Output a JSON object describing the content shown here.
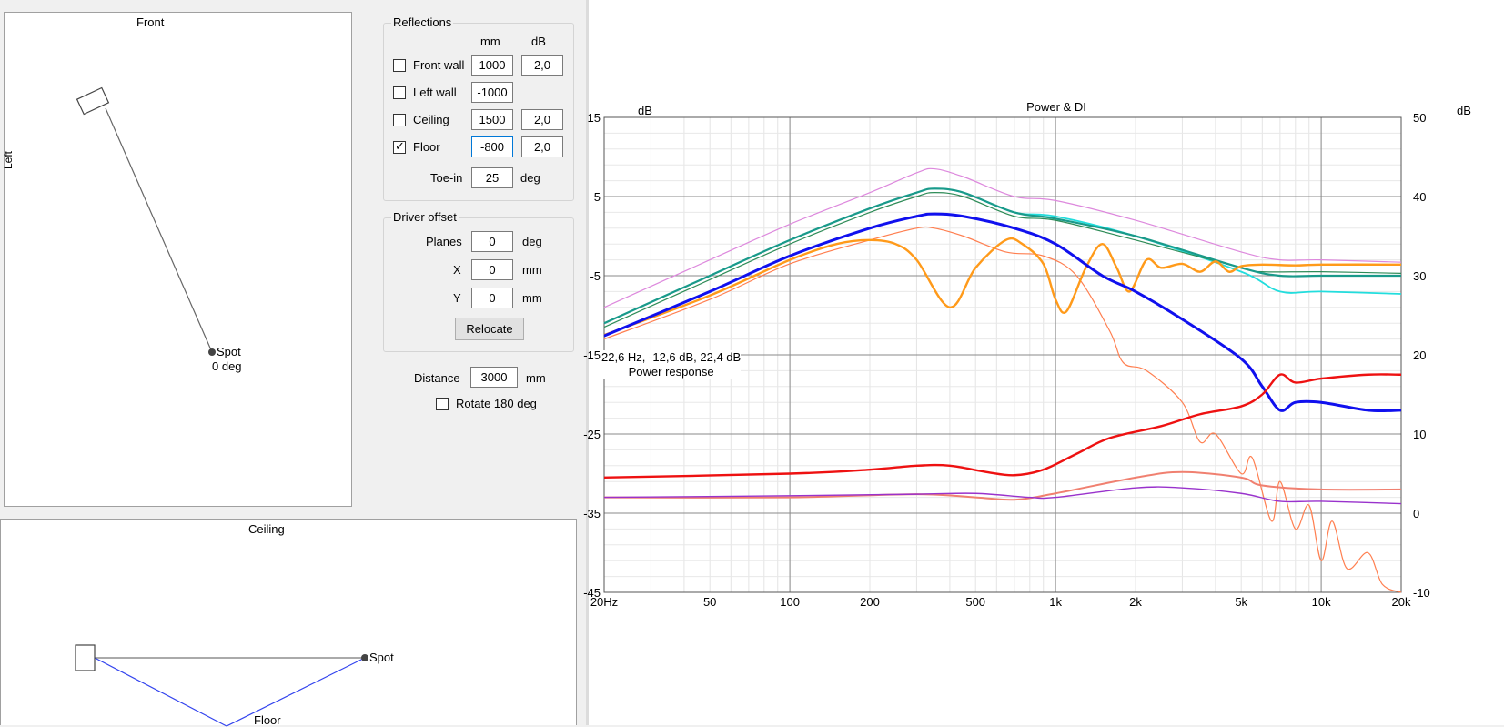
{
  "front_view": {
    "title": "Front",
    "side_label": "Left",
    "spot_label": "Spot",
    "spot_angle": "0 deg"
  },
  "ceiling_view": {
    "title": "Ceiling",
    "spot_label": "Spot",
    "floor_label": "Floor"
  },
  "reflections": {
    "title": "Reflections",
    "col_mm": "mm",
    "col_db": "dB",
    "rows": [
      {
        "label": "Front wall",
        "checked": false,
        "mm": "1000",
        "db": "2,0"
      },
      {
        "label": "Left wall",
        "checked": false,
        "mm": "-1000",
        "db": ""
      },
      {
        "label": "Ceiling",
        "checked": false,
        "mm": "1500",
        "db": "2,0"
      },
      {
        "label": "Floor",
        "checked": true,
        "mm": "-800",
        "db": "2,0"
      }
    ],
    "toe_in_label": "Toe-in",
    "toe_in_value": "25",
    "toe_in_unit": "deg"
  },
  "driver_offset": {
    "title": "Driver offset",
    "planes_label": "Planes",
    "planes_value": "0",
    "planes_unit": "deg",
    "x_label": "X",
    "x_value": "0",
    "x_unit": "mm",
    "y_label": "Y",
    "y_value": "0",
    "y_unit": "mm",
    "relocate_label": "Relocate"
  },
  "distance": {
    "label": "Distance",
    "value": "3000",
    "unit": "mm"
  },
  "rotate": {
    "label": "Rotate 180 deg",
    "checked": false
  },
  "chart_data": {
    "type": "line",
    "title": "Power & DI",
    "left_unit": "dB",
    "right_unit": "dB",
    "x_scale": "log",
    "xlim": [
      20,
      20000
    ],
    "ylim": [
      -45,
      15
    ],
    "y2lim": [
      -10,
      50
    ],
    "x_ticks": [
      {
        "v": 20,
        "label": "20Hz"
      },
      {
        "v": 50,
        "label": "50"
      },
      {
        "v": 100,
        "label": "100"
      },
      {
        "v": 200,
        "label": "200"
      },
      {
        "v": 500,
        "label": "500"
      },
      {
        "v": 1000,
        "label": "1k"
      },
      {
        "v": 2000,
        "label": "2k"
      },
      {
        "v": 5000,
        "label": "5k"
      },
      {
        "v": 10000,
        "label": "10k"
      },
      {
        "v": 20000,
        "label": "20k"
      }
    ],
    "y_ticks": [
      15,
      5,
      -5,
      -15,
      -25,
      -35,
      -45
    ],
    "y2_ticks": [
      50,
      40,
      30,
      20,
      10,
      0,
      -10
    ],
    "grid": true,
    "cursor_readout": "22,6 Hz, -12,6 dB, 22,4 dB",
    "cursor_series": "Power response",
    "series": [
      {
        "color": "#dd88dd",
        "width": 1.2,
        "points": [
          [
            20,
            -9
          ],
          [
            50,
            -3
          ],
          [
            100,
            1.5
          ],
          [
            200,
            5.5
          ],
          [
            300,
            8
          ],
          [
            350,
            8.5
          ],
          [
            450,
            7.5
          ],
          [
            700,
            5
          ],
          [
            1000,
            4.5
          ],
          [
            2000,
            2
          ],
          [
            5000,
            -2
          ],
          [
            7000,
            -3
          ],
          [
            10000,
            -3
          ],
          [
            20000,
            -3.3
          ]
        ]
      },
      {
        "color": "#22dddd",
        "width": 1.8,
        "points": [
          [
            20,
            -11
          ],
          [
            50,
            -5
          ],
          [
            100,
            -0.5
          ],
          [
            200,
            3.5
          ],
          [
            300,
            5.5
          ],
          [
            350,
            6
          ],
          [
            450,
            5.5
          ],
          [
            700,
            3
          ],
          [
            1000,
            2.5
          ],
          [
            2000,
            0
          ],
          [
            5000,
            -4.5
          ],
          [
            7000,
            -7
          ],
          [
            10000,
            -7
          ],
          [
            20000,
            -7.3
          ]
        ]
      },
      {
        "color": "#2e8b57",
        "width": 1.2,
        "points": [
          [
            20,
            -11.5
          ],
          [
            50,
            -5.5
          ],
          [
            100,
            -1
          ],
          [
            200,
            3
          ],
          [
            300,
            5
          ],
          [
            350,
            5.5
          ],
          [
            450,
            5
          ],
          [
            700,
            2.5
          ],
          [
            1000,
            2
          ],
          [
            2000,
            -0.5
          ],
          [
            5000,
            -4
          ],
          [
            6000,
            -4.5
          ],
          [
            10000,
            -4.5
          ],
          [
            20000,
            -4.7
          ]
        ]
      },
      {
        "color": "#1a9a8a",
        "width": 2.2,
        "points": [
          [
            20,
            -11
          ],
          [
            50,
            -5
          ],
          [
            100,
            -0.5
          ],
          [
            200,
            3.5
          ],
          [
            300,
            5.5
          ],
          [
            350,
            6
          ],
          [
            450,
            5.5
          ],
          [
            700,
            3
          ],
          [
            1000,
            2.2
          ],
          [
            2000,
            0
          ],
          [
            5000,
            -4
          ],
          [
            7000,
            -5
          ],
          [
            10000,
            -5
          ],
          [
            20000,
            -5
          ]
        ]
      },
      {
        "color": "#ff7f50",
        "width": 1.2,
        "points": [
          [
            20,
            -13
          ],
          [
            50,
            -8
          ],
          [
            100,
            -3.5
          ],
          [
            200,
            -0.5
          ],
          [
            300,
            1
          ],
          [
            350,
            1
          ],
          [
            450,
            0
          ],
          [
            650,
            -2
          ],
          [
            900,
            -2.5
          ],
          [
            1200,
            -5
          ],
          [
            1600,
            -12
          ],
          [
            1800,
            -16
          ],
          [
            2200,
            -17
          ],
          [
            3000,
            -21
          ],
          [
            3500,
            -26
          ],
          [
            4000,
            -25
          ],
          [
            5000,
            -30
          ],
          [
            5500,
            -28
          ],
          [
            6500,
            -36
          ],
          [
            7000,
            -31
          ],
          [
            8000,
            -37
          ],
          [
            9000,
            -34
          ],
          [
            10000,
            -41
          ],
          [
            11000,
            -36
          ],
          [
            12500,
            -42
          ],
          [
            15000,
            -40
          ],
          [
            17000,
            -44
          ],
          [
            20000,
            -45
          ]
        ]
      },
      {
        "color": "#ff9a1a",
        "width": 2.4,
        "points": [
          [
            20,
            -12.5
          ],
          [
            50,
            -7.5
          ],
          [
            100,
            -3
          ],
          [
            150,
            -1
          ],
          [
            200,
            -0.5
          ],
          [
            250,
            -1
          ],
          [
            300,
            -3
          ],
          [
            400,
            -9
          ],
          [
            500,
            -4
          ],
          [
            650,
            -0.5
          ],
          [
            750,
            -1
          ],
          [
            900,
            -3.5
          ],
          [
            1000,
            -8
          ],
          [
            1100,
            -9.5
          ],
          [
            1300,
            -4
          ],
          [
            1500,
            -1
          ],
          [
            1700,
            -4
          ],
          [
            1900,
            -7
          ],
          [
            2200,
            -3
          ],
          [
            2500,
            -4
          ],
          [
            3000,
            -3.5
          ],
          [
            3500,
            -4.5
          ],
          [
            4000,
            -3.2
          ],
          [
            4500,
            -4.5
          ],
          [
            5000,
            -3.8
          ],
          [
            6000,
            -3.6
          ],
          [
            8000,
            -3.7
          ],
          [
            10000,
            -3.6
          ],
          [
            20000,
            -3.6
          ]
        ]
      },
      {
        "color": "#1010ee",
        "width": 3,
        "points": [
          [
            20,
            -12.6
          ],
          [
            50,
            -7
          ],
          [
            100,
            -2.5
          ],
          [
            200,
            1
          ],
          [
            300,
            2.5
          ],
          [
            350,
            2.8
          ],
          [
            450,
            2.5
          ],
          [
            700,
            1
          ],
          [
            1000,
            -1
          ],
          [
            1500,
            -5
          ],
          [
            2000,
            -7
          ],
          [
            3000,
            -10.5
          ],
          [
            5000,
            -15.5
          ],
          [
            6000,
            -19
          ],
          [
            7000,
            -22
          ],
          [
            8000,
            -21
          ],
          [
            10000,
            -21
          ],
          [
            15000,
            -22
          ],
          [
            20000,
            -22
          ]
        ]
      },
      {
        "color": "#ee1111",
        "width": 2.4,
        "points": [
          [
            20,
            -30.5
          ],
          [
            100,
            -30
          ],
          [
            200,
            -29.5
          ],
          [
            300,
            -29
          ],
          [
            400,
            -29
          ],
          [
            550,
            -29.8
          ],
          [
            700,
            -30.2
          ],
          [
            900,
            -29.5
          ],
          [
            1200,
            -27.5
          ],
          [
            1600,
            -25.5
          ],
          [
            2500,
            -24
          ],
          [
            3500,
            -22.5
          ],
          [
            5000,
            -21.5
          ],
          [
            6000,
            -20
          ],
          [
            7000,
            -17.5
          ],
          [
            8000,
            -18.5
          ],
          [
            10000,
            -18
          ],
          [
            15000,
            -17.5
          ],
          [
            20000,
            -17.5
          ]
        ]
      },
      {
        "color": "#f08070",
        "width": 2,
        "points": [
          [
            20,
            -33
          ],
          [
            100,
            -33
          ],
          [
            300,
            -32.6
          ],
          [
            500,
            -33
          ],
          [
            700,
            -33.3
          ],
          [
            1000,
            -32.5
          ],
          [
            2000,
            -30.5
          ],
          [
            3000,
            -29.8
          ],
          [
            5000,
            -30.5
          ],
          [
            6000,
            -31.5
          ],
          [
            10000,
            -32
          ],
          [
            20000,
            -32
          ]
        ]
      },
      {
        "color": "#9932cc",
        "width": 1.4,
        "points": [
          [
            20,
            -33
          ],
          [
            100,
            -32.8
          ],
          [
            300,
            -32.6
          ],
          [
            500,
            -32.5
          ],
          [
            800,
            -33
          ],
          [
            1000,
            -33
          ],
          [
            2000,
            -31.8
          ],
          [
            3000,
            -31.8
          ],
          [
            5000,
            -32.5
          ],
          [
            7000,
            -33.5
          ],
          [
            10000,
            -33.5
          ],
          [
            20000,
            -33.8
          ]
        ]
      }
    ]
  }
}
